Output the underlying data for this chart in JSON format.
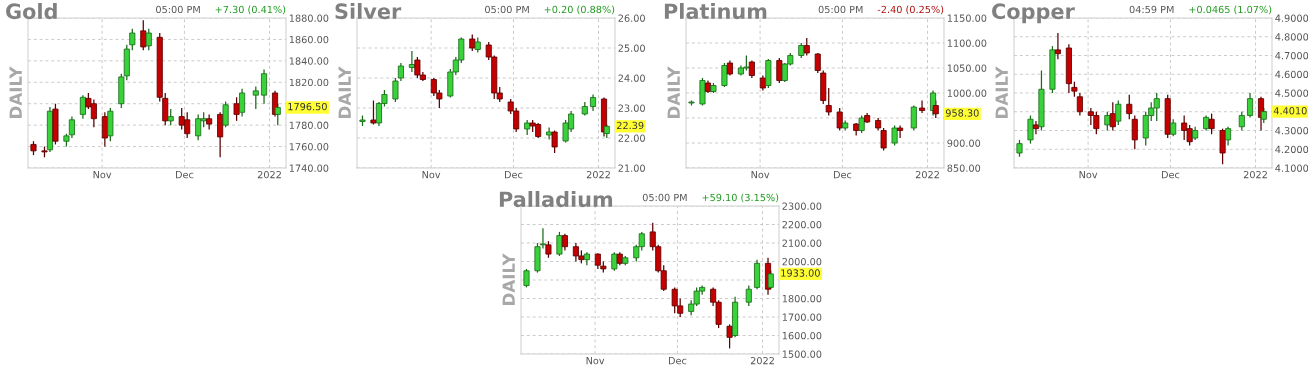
{
  "chart_data": [
    {
      "type": "candlestick",
      "title": "Gold",
      "ylabel": "DAILY",
      "grid": true,
      "x": [
        "2021-10-07",
        "2021-10-11",
        "2021-10-13",
        "2021-10-15",
        "2021-10-19",
        "2021-10-21",
        "2021-10-25",
        "2021-10-27",
        "2021-10-29",
        "2021-11-02",
        "2021-11-04",
        "2021-11-08",
        "2021-11-10",
        "2021-11-12",
        "2021-11-16",
        "2021-11-18",
        "2021-11-22",
        "2021-11-24",
        "2021-11-26",
        "2021-11-30",
        "2021-12-02",
        "2021-12-06",
        "2021-12-08",
        "2021-12-10",
        "2021-12-14",
        "2021-12-16",
        "2021-12-20",
        "2021-12-22",
        "2021-12-27",
        "2021-12-30",
        "2022-01-03",
        "2022-01-04"
      ],
      "ohlc": [
        [
          1762,
          1765,
          1752,
          1756
        ],
        [
          1756,
          1760,
          1750,
          1755
        ],
        [
          1757,
          1797,
          1755,
          1793
        ],
        [
          1795,
          1800,
          1762,
          1765
        ],
        [
          1765,
          1772,
          1760,
          1770
        ],
        [
          1771,
          1788,
          1768,
          1785
        ],
        [
          1790,
          1808,
          1786,
          1806
        ],
        [
          1805,
          1810,
          1795,
          1797
        ],
        [
          1800,
          1804,
          1778,
          1786
        ],
        [
          1788,
          1792,
          1760,
          1768
        ],
        [
          1770,
          1796,
          1765,
          1793
        ],
        [
          1800,
          1828,
          1796,
          1825
        ],
        [
          1826,
          1855,
          1822,
          1851
        ],
        [
          1855,
          1870,
          1850,
          1866
        ],
        [
          1868,
          1878,
          1850,
          1853
        ],
        [
          1854,
          1870,
          1850,
          1866
        ],
        [
          1862,
          1866,
          1802,
          1806
        ],
        [
          1805,
          1810,
          1780,
          1784
        ],
        [
          1784,
          1795,
          1780,
          1788
        ],
        [
          1788,
          1796,
          1776,
          1780
        ],
        [
          1785,
          1792,
          1768,
          1772
        ],
        [
          1770,
          1790,
          1766,
          1786
        ],
        [
          1784,
          1792,
          1778,
          1786
        ],
        [
          1786,
          1790,
          1776,
          1781
        ],
        [
          1790,
          1792,
          1750,
          1769
        ],
        [
          1780,
          1802,
          1778,
          1799
        ],
        [
          1800,
          1806,
          1784,
          1790
        ],
        [
          1792,
          1814,
          1788,
          1810
        ],
        [
          1808,
          1816,
          1795,
          1812
        ],
        [
          1808,
          1832,
          1800,
          1828
        ],
        [
          1810,
          1812,
          1788,
          1790
        ],
        [
          1790,
          1800,
          1780,
          1796.5
        ]
      ],
      "xlim": [
        "2021-10-05",
        "2022-01-07"
      ],
      "xticks": [
        {
          "value": "2021-11-01",
          "label": "Nov"
        },
        {
          "value": "2021-12-01",
          "label": "Dec"
        },
        {
          "value": "2022-01-01",
          "label": "2022"
        }
      ],
      "ylim": [
        1740,
        1880
      ],
      "yticks": [
        {
          "value": 1740,
          "label": "1740.00"
        },
        {
          "value": 1760,
          "label": "1760.00"
        },
        {
          "value": 1780,
          "label": "1780.00"
        },
        {
          "value": 1800,
          "label": null
        },
        {
          "value": 1820,
          "label": "1820.00"
        },
        {
          "value": 1840,
          "label": "1840.00"
        },
        {
          "value": 1860,
          "label": "1860.00"
        },
        {
          "value": 1880,
          "label": "1880.00"
        }
      ],
      "annotations": [
        "05:00 PM",
        "+7.30 (0.41%)",
        {
          "text": "1796.50",
          "x": "2022-01-04",
          "y": 1796.5
        }
      ]
    },
    {
      "type": "candlestick",
      "title": "Silver",
      "ylabel": "DAILY",
      "grid": true,
      "x": [
        "2021-10-07",
        "2021-10-11",
        "2021-10-13",
        "2021-10-15",
        "2021-10-19",
        "2021-10-21",
        "2021-10-25",
        "2021-10-27",
        "2021-10-29",
        "2021-11-02",
        "2021-11-04",
        "2021-11-08",
        "2021-11-10",
        "2021-11-12",
        "2021-11-16",
        "2021-11-18",
        "2021-11-22",
        "2021-11-24",
        "2021-11-26",
        "2021-11-30",
        "2021-12-02",
        "2021-12-06",
        "2021-12-08",
        "2021-12-10",
        "2021-12-14",
        "2021-12-16",
        "2021-12-20",
        "2021-12-22",
        "2021-12-27",
        "2021-12-30",
        "2022-01-03",
        "2022-01-04"
      ],
      "ohlc": [
        [
          22.55,
          22.75,
          22.4,
          22.6
        ],
        [
          22.6,
          23.25,
          22.45,
          22.5
        ],
        [
          22.5,
          23.2,
          22.4,
          23.15
        ],
        [
          23.15,
          23.6,
          23.05,
          23.45
        ],
        [
          23.3,
          24.0,
          23.2,
          23.9
        ],
        [
          24.0,
          24.5,
          23.9,
          24.4
        ],
        [
          24.35,
          24.9,
          24.2,
          24.45
        ],
        [
          24.6,
          24.7,
          24.0,
          24.1
        ],
        [
          24.1,
          24.2,
          23.9,
          23.95
        ],
        [
          23.95,
          24.0,
          23.4,
          23.5
        ],
        [
          23.5,
          23.6,
          23.0,
          23.3
        ],
        [
          23.4,
          24.3,
          23.35,
          24.2
        ],
        [
          24.2,
          24.7,
          24.1,
          24.6
        ],
        [
          24.6,
          25.35,
          24.5,
          25.3
        ],
        [
          25.3,
          25.45,
          24.9,
          25.0
        ],
        [
          24.95,
          25.35,
          24.85,
          25.2
        ],
        [
          25.1,
          25.2,
          24.6,
          24.7
        ],
        [
          24.7,
          24.75,
          23.3,
          23.5
        ],
        [
          23.5,
          23.7,
          23.2,
          23.3
        ],
        [
          23.2,
          23.3,
          22.8,
          22.9
        ],
        [
          22.9,
          23.0,
          22.2,
          22.3
        ],
        [
          22.3,
          22.6,
          22.1,
          22.5
        ],
        [
          22.5,
          22.6,
          22.2,
          22.4
        ],
        [
          22.45,
          22.5,
          22.0,
          22.05
        ],
        [
          22.1,
          22.35,
          21.95,
          22.2
        ],
        [
          22.2,
          22.25,
          21.5,
          21.7
        ],
        [
          21.9,
          22.6,
          21.85,
          22.5
        ],
        [
          22.3,
          22.9,
          22.2,
          22.8
        ],
        [
          22.8,
          23.2,
          22.75,
          23.05
        ],
        [
          23.05,
          23.45,
          22.9,
          23.35
        ],
        [
          23.3,
          23.35,
          22.05,
          22.2
        ],
        [
          22.15,
          22.45,
          22.0,
          22.39
        ]
      ],
      "xlim": [
        "2021-10-05",
        "2022-01-07"
      ],
      "xticks": [
        {
          "value": "2021-11-01",
          "label": "Nov"
        },
        {
          "value": "2021-12-01",
          "label": "Dec"
        },
        {
          "value": "2022-01-01",
          "label": "2022"
        }
      ],
      "ylim": [
        21,
        26
      ],
      "yticks": [
        {
          "value": 21,
          "label": "21.00"
        },
        {
          "value": 22,
          "label": "22.00"
        },
        {
          "value": 23,
          "label": "23.00"
        },
        {
          "value": 24,
          "label": "24.00"
        },
        {
          "value": 25,
          "label": "25.00"
        },
        {
          "value": 26,
          "label": "26.00"
        }
      ],
      "annotations": [
        "05:00 PM",
        "+0.20 (0.88%)",
        {
          "text": "22.39",
          "x": "2022-01-04",
          "y": 22.39
        }
      ]
    },
    {
      "type": "candlestick",
      "title": "Platinum",
      "ylabel": "DAILY",
      "grid": true,
      "x": [
        "2021-10-07",
        "2021-10-11",
        "2021-10-13",
        "2021-10-15",
        "2021-10-19",
        "2021-10-21",
        "2021-10-25",
        "2021-10-27",
        "2021-10-29",
        "2021-11-02",
        "2021-11-04",
        "2021-11-08",
        "2021-11-10",
        "2021-11-12",
        "2021-11-16",
        "2021-11-18",
        "2021-11-22",
        "2021-11-24",
        "2021-11-26",
        "2021-11-30",
        "2021-12-02",
        "2021-12-06",
        "2021-12-08",
        "2021-12-10",
        "2021-12-14",
        "2021-12-16",
        "2021-12-20",
        "2021-12-22",
        "2021-12-27",
        "2021-12-30",
        "2022-01-03",
        "2022-01-04"
      ],
      "ohlc": [
        [
          980,
          985,
          975,
          982
        ],
        [
          978,
          1030,
          975,
          1025
        ],
        [
          1020,
          1025,
          1000,
          1003
        ],
        [
          1003,
          1020,
          1000,
          1015
        ],
        [
          1015,
          1060,
          1012,
          1055
        ],
        [
          1060,
          1065,
          1035,
          1038
        ],
        [
          1038,
          1055,
          1035,
          1050
        ],
        [
          1050,
          1075,
          1045,
          1052
        ],
        [
          1062,
          1065,
          1030,
          1035
        ],
        [
          1030,
          1035,
          1005,
          1010
        ],
        [
          1015,
          1068,
          1010,
          1065
        ],
        [
          1065,
          1070,
          1020,
          1025
        ],
        [
          1025,
          1060,
          1022,
          1058
        ],
        [
          1058,
          1080,
          1055,
          1075
        ],
        [
          1075,
          1100,
          1070,
          1095
        ],
        [
          1095,
          1110,
          1075,
          1080
        ],
        [
          1078,
          1080,
          1040,
          1045
        ],
        [
          1040,
          1045,
          978,
          985
        ],
        [
          975,
          1010,
          955,
          962
        ],
        [
          962,
          970,
          925,
          930
        ],
        [
          930,
          945,
          925,
          940
        ],
        [
          938,
          940,
          915,
          925
        ],
        [
          925,
          955,
          920,
          950
        ],
        [
          955,
          960,
          940,
          942
        ],
        [
          945,
          950,
          925,
          930
        ],
        [
          925,
          930,
          885,
          890
        ],
        [
          900,
          935,
          895,
          930
        ],
        [
          930,
          935,
          910,
          925
        ],
        [
          930,
          975,
          925,
          972
        ],
        [
          970,
          985,
          960,
          965
        ],
        [
          965,
          1005,
          955,
          1000
        ],
        [
          975,
          985,
          950,
          958.3
        ]
      ],
      "xlim": [
        "2021-10-05",
        "2022-01-07"
      ],
      "xticks": [
        {
          "value": "2021-11-01",
          "label": "Nov"
        },
        {
          "value": "2021-12-01",
          "label": "Dec"
        },
        {
          "value": "2022-01-01",
          "label": "2022"
        }
      ],
      "ylim": [
        850,
        1150
      ],
      "yticks": [
        {
          "value": 850,
          "label": "850.00"
        },
        {
          "value": 900,
          "label": "900.00"
        },
        {
          "value": 950,
          "label": null
        },
        {
          "value": 1000,
          "label": "1000.00"
        },
        {
          "value": 1050,
          "label": "1050.00"
        },
        {
          "value": 1100,
          "label": "1100.00"
        },
        {
          "value": 1150,
          "label": "1150.00"
        }
      ],
      "annotations": [
        "05:00 PM",
        "-2.40 (0.25%)",
        {
          "text": "958.30",
          "x": "2022-01-04",
          "y": 958.3
        }
      ]
    },
    {
      "type": "candlestick",
      "title": "Copper",
      "ylabel": "DAILY",
      "grid": true,
      "x": [
        "2021-10-07",
        "2021-10-11",
        "2021-10-13",
        "2021-10-15",
        "2021-10-19",
        "2021-10-21",
        "2021-10-25",
        "2021-10-27",
        "2021-10-29",
        "2021-11-02",
        "2021-11-04",
        "2021-11-08",
        "2021-11-10",
        "2021-11-12",
        "2021-11-16",
        "2021-11-18",
        "2021-11-22",
        "2021-11-24",
        "2021-11-26",
        "2021-11-30",
        "2021-12-02",
        "2021-12-06",
        "2021-12-08",
        "2021-12-10",
        "2021-12-14",
        "2021-12-16",
        "2021-12-20",
        "2021-12-22",
        "2021-12-27",
        "2021-12-30",
        "2022-01-03",
        "2022-01-04"
      ],
      "ohlc": [
        [
          4.18,
          4.25,
          4.16,
          4.23
        ],
        [
          4.25,
          4.38,
          4.23,
          4.36
        ],
        [
          4.33,
          4.35,
          4.28,
          4.31
        ],
        [
          4.32,
          4.62,
          4.3,
          4.52
        ],
        [
          4.52,
          4.75,
          4.5,
          4.73
        ],
        [
          4.73,
          4.82,
          4.68,
          4.71
        ],
        [
          4.74,
          4.76,
          4.5,
          4.55
        ],
        [
          4.53,
          4.56,
          4.48,
          4.51
        ],
        [
          4.48,
          4.5,
          4.38,
          4.4
        ],
        [
          4.4,
          4.42,
          4.33,
          4.38
        ],
        [
          4.38,
          4.4,
          4.28,
          4.31
        ],
        [
          4.33,
          4.4,
          4.3,
          4.38
        ],
        [
          4.39,
          4.45,
          4.3,
          4.32
        ],
        [
          4.35,
          4.46,
          4.33,
          4.44
        ],
        [
          4.44,
          4.49,
          4.36,
          4.39
        ],
        [
          4.36,
          4.38,
          4.2,
          4.25
        ],
        [
          4.26,
          4.4,
          4.22,
          4.38
        ],
        [
          4.38,
          4.45,
          4.35,
          4.42
        ],
        [
          4.42,
          4.5,
          4.35,
          4.47
        ],
        [
          4.47,
          4.49,
          4.26,
          4.28
        ],
        [
          4.28,
          4.36,
          4.27,
          4.34
        ],
        [
          4.34,
          4.38,
          4.25,
          4.3
        ],
        [
          4.31,
          4.33,
          4.22,
          4.24
        ],
        [
          4.26,
          4.32,
          4.25,
          4.3
        ],
        [
          4.31,
          4.38,
          4.3,
          4.37
        ],
        [
          4.36,
          4.39,
          4.28,
          4.31
        ],
        [
          4.3,
          4.31,
          4.12,
          4.18
        ],
        [
          4.25,
          4.32,
          4.22,
          4.31
        ],
        [
          4.32,
          4.4,
          4.3,
          4.38
        ],
        [
          4.38,
          4.5,
          4.37,
          4.47
        ],
        [
          4.47,
          4.48,
          4.3,
          4.37
        ],
        [
          4.36,
          4.42,
          4.34,
          4.401
        ]
      ],
      "xlim": [
        "2021-10-05",
        "2022-01-07"
      ],
      "xticks": [
        {
          "value": "2021-11-01",
          "label": "Nov"
        },
        {
          "value": "2021-12-01",
          "label": "Dec"
        },
        {
          "value": "2022-01-01",
          "label": "2022"
        }
      ],
      "ylim": [
        4.1,
        4.9
      ],
      "yticks": [
        {
          "value": 4.1,
          "label": "4.1000"
        },
        {
          "value": 4.2,
          "label": "4.2000"
        },
        {
          "value": 4.3,
          "label": "4.3000"
        },
        {
          "value": 4.4,
          "label": null
        },
        {
          "value": 4.5,
          "label": "4.5000"
        },
        {
          "value": 4.6,
          "label": "4.6000"
        },
        {
          "value": 4.7,
          "label": "4.7000"
        },
        {
          "value": 4.8,
          "label": "4.8000"
        },
        {
          "value": 4.9,
          "label": "4.9000"
        }
      ],
      "annotations": [
        "04:59 PM",
        "+0.0465 (1.07%)",
        {
          "text": "4.4010",
          "x": "2022-01-04",
          "y": 4.401
        }
      ]
    },
    {
      "type": "candlestick",
      "title": "Palladium",
      "ylabel": "DAILY",
      "grid": true,
      "x": [
        "2021-10-07",
        "2021-10-11",
        "2021-10-13",
        "2021-10-15",
        "2021-10-19",
        "2021-10-21",
        "2021-10-25",
        "2021-10-27",
        "2021-10-29",
        "2021-11-02",
        "2021-11-04",
        "2021-11-08",
        "2021-11-10",
        "2021-11-12",
        "2021-11-16",
        "2021-11-18",
        "2021-11-22",
        "2021-11-24",
        "2021-11-26",
        "2021-11-30",
        "2021-12-02",
        "2021-12-06",
        "2021-12-08",
        "2021-12-10",
        "2021-12-14",
        "2021-12-16",
        "2021-12-20",
        "2021-12-22",
        "2021-12-27",
        "2021-12-30",
        "2022-01-03",
        "2022-01-04"
      ],
      "ohlc": [
        [
          1870,
          1960,
          1860,
          1950
        ],
        [
          1950,
          2100,
          1940,
          2080
        ],
        [
          2090,
          2180,
          2070,
          2095
        ],
        [
          2090,
          2110,
          2020,
          2040
        ],
        [
          2040,
          2160,
          2030,
          2140
        ],
        [
          2140,
          2150,
          2060,
          2080
        ],
        [
          2080,
          2100,
          2000,
          2030
        ],
        [
          2030,
          2060,
          1990,
          2010
        ],
        [
          2010,
          2050,
          1980,
          2040
        ],
        [
          2040,
          2045,
          1960,
          1980
        ],
        [
          1975,
          2000,
          1940,
          1960
        ],
        [
          1960,
          2050,
          1950,
          2040
        ],
        [
          2040,
          2050,
          1980,
          1990
        ],
        [
          1990,
          2030,
          1980,
          2020
        ],
        [
          2020,
          2090,
          2000,
          2080
        ],
        [
          2080,
          2160,
          2060,
          2150
        ],
        [
          2160,
          2210,
          2060,
          2080
        ],
        [
          2080,
          2090,
          1940,
          1950
        ],
        [
          1950,
          1980,
          1840,
          1850
        ],
        [
          1850,
          1860,
          1720,
          1760
        ],
        [
          1760,
          1800,
          1700,
          1720
        ],
        [
          1730,
          1790,
          1710,
          1770
        ],
        [
          1770,
          1860,
          1760,
          1840
        ],
        [
          1840,
          1870,
          1820,
          1860
        ],
        [
          1850,
          1860,
          1760,
          1780
        ],
        [
          1780,
          1790,
          1640,
          1660
        ],
        [
          1650,
          1660,
          1530,
          1590
        ],
        [
          1600,
          1810,
          1590,
          1780
        ],
        [
          1780,
          1870,
          1760,
          1850
        ],
        [
          1860,
          2010,
          1850,
          1990
        ],
        [
          1990,
          2020,
          1820,
          1850
        ],
        [
          1860,
          1950,
          1850,
          1933
        ]
      ],
      "xlim": [
        "2021-10-05",
        "2022-01-07"
      ],
      "xticks": [
        {
          "value": "2021-11-01",
          "label": "Nov"
        },
        {
          "value": "2021-12-01",
          "label": "Dec"
        },
        {
          "value": "2022-01-01",
          "label": "2022"
        }
      ],
      "ylim": [
        1500,
        2300
      ],
      "yticks": [
        {
          "value": 1500,
          "label": "1500.00"
        },
        {
          "value": 1600,
          "label": "1600.00"
        },
        {
          "value": 1700,
          "label": "1700.00"
        },
        {
          "value": 1800,
          "label": "1800.00"
        },
        {
          "value": 1900,
          "label": null
        },
        {
          "value": 2000,
          "label": "2000.00"
        },
        {
          "value": 2100,
          "label": "2100.00"
        },
        {
          "value": 2200,
          "label": "2200.00"
        },
        {
          "value": 2300,
          "label": "2300.00"
        }
      ],
      "annotations": [
        "05:00 PM",
        "+59.10 (3.15%)",
        {
          "text": "1933.00",
          "x": "2022-01-04",
          "y": 1933
        }
      ]
    }
  ]
}
